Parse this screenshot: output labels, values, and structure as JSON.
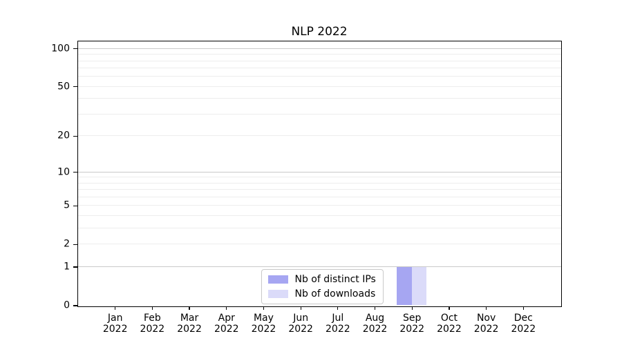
{
  "chart_data": {
    "type": "bar",
    "title": "NLP 2022",
    "categories": [
      "Jan",
      "Feb",
      "Mar",
      "Apr",
      "May",
      "Jun",
      "Jul",
      "Aug",
      "Sep",
      "Oct",
      "Nov",
      "Dec"
    ],
    "category_year": "2022",
    "series": [
      {
        "name": "Nb of distinct IPs",
        "color": "#a6a6f2",
        "values": [
          0,
          0,
          0,
          0,
          0,
          0,
          0,
          0,
          1,
          0,
          0,
          0
        ]
      },
      {
        "name": "Nb of downloads",
        "color": "#dbdbf9",
        "values": [
          0,
          0,
          0,
          0,
          0,
          0,
          0,
          0,
          1,
          0,
          0,
          0
        ]
      }
    ],
    "xlabel": "",
    "ylabel": "",
    "yscale": "log1p",
    "ylim": [
      0,
      114
    ],
    "yticks": [
      0,
      1,
      2,
      5,
      10,
      20,
      50,
      100
    ],
    "major_gridlines": [
      1,
      10,
      100
    ],
    "minor_gridlines": [
      2,
      3,
      4,
      5,
      6,
      7,
      8,
      9,
      20,
      30,
      40,
      50,
      60,
      70,
      80,
      90
    ],
    "grid": "horizontal",
    "legend_position": "lower center, inside plot",
    "colors": {
      "background": "#ffffff",
      "spine": "#000000",
      "major_grid": "#c9c9c9",
      "minor_grid": "#ededed",
      "text": "#000000"
    }
  }
}
